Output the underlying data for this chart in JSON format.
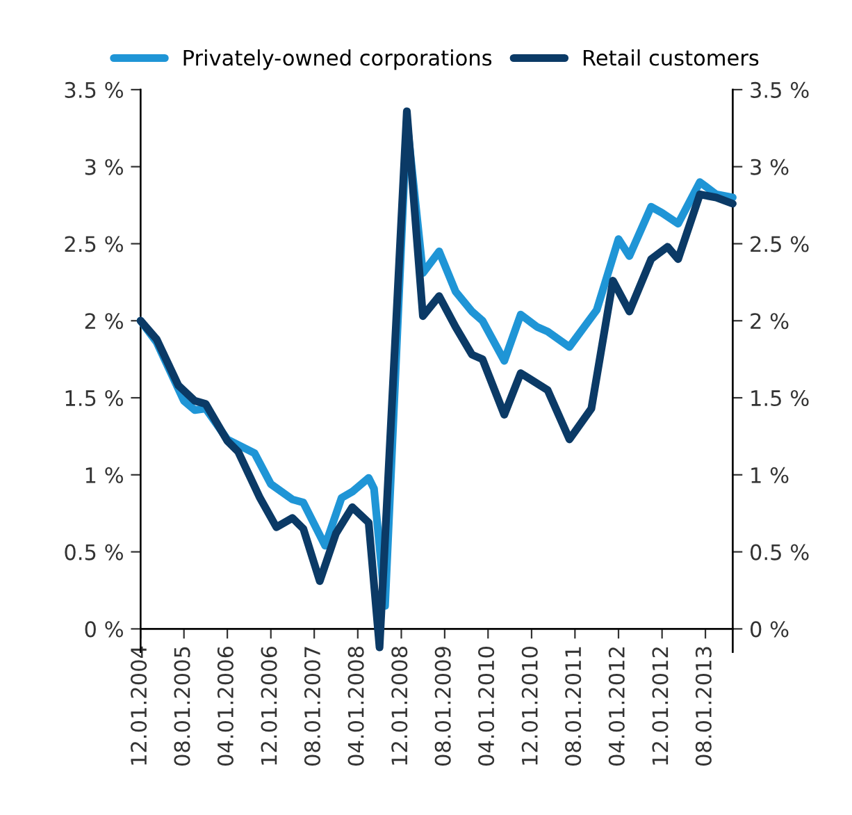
{
  "chart_data": {
    "type": "line",
    "series": [
      {
        "name": "Privately-owned corporations",
        "color": "#1f95d6",
        "x": [
          "2004-12",
          "2005-03",
          "2005-08",
          "2005-10",
          "2005-12",
          "2006-04",
          "2006-09",
          "2006-12",
          "2007-04",
          "2007-06",
          "2007-10",
          "2008-01",
          "2008-03",
          "2008-06",
          "2008-07",
          "2008-09",
          "2009-01",
          "2009-04",
          "2009-07",
          "2009-10",
          "2010-01",
          "2010-03",
          "2010-07",
          "2010-10",
          "2011-01",
          "2011-03",
          "2011-07",
          "2011-12",
          "2012-04",
          "2012-06",
          "2012-10",
          "2012-12",
          "2013-03",
          "2013-07",
          "2013-10",
          "2014-01"
        ],
        "values": [
          2.0,
          1.86,
          1.48,
          1.42,
          1.43,
          1.23,
          1.14,
          0.94,
          0.84,
          0.82,
          0.54,
          0.85,
          0.89,
          0.98,
          0.91,
          0.15,
          3.3,
          2.31,
          2.45,
          2.19,
          2.06,
          2.0,
          1.74,
          2.04,
          1.96,
          1.93,
          1.83,
          2.07,
          2.53,
          2.42,
          2.74,
          2.7,
          2.63,
          2.9,
          2.82,
          2.8
        ]
      },
      {
        "name": "Retail customers",
        "color": "#0b3a66",
        "x": [
          "2004-12",
          "2005-03",
          "2005-07",
          "2005-10",
          "2005-12",
          "2006-04",
          "2006-06",
          "2006-10",
          "2007-01",
          "2007-04",
          "2007-06",
          "2007-09",
          "2007-12",
          "2008-03",
          "2008-06",
          "2008-08",
          "2009-01",
          "2009-04",
          "2009-07",
          "2009-10",
          "2010-01",
          "2010-03",
          "2010-07",
          "2010-10",
          "2011-03",
          "2011-07",
          "2011-11",
          "2012-03",
          "2012-06",
          "2012-10",
          "2013-01",
          "2013-03",
          "2013-07",
          "2013-10",
          "2014-01"
        ],
        "values": [
          2.0,
          1.88,
          1.58,
          1.48,
          1.46,
          1.22,
          1.15,
          0.85,
          0.66,
          0.72,
          0.65,
          0.31,
          0.62,
          0.79,
          0.69,
          -0.12,
          3.36,
          2.03,
          2.16,
          1.96,
          1.78,
          1.75,
          1.39,
          1.66,
          1.55,
          1.23,
          1.43,
          2.26,
          2.06,
          2.4,
          2.48,
          2.4,
          2.82,
          2.8,
          2.76
        ]
      }
    ],
    "xlim": [
      "2004-12",
      "2014-01"
    ],
    "xticks": [
      {
        "value": "2004-12",
        "label": "12.01.2004"
      },
      {
        "value": "2005-08",
        "label": "08.01.2005"
      },
      {
        "value": "2006-04",
        "label": "04.01.2006"
      },
      {
        "value": "2006-12",
        "label": "12.01.2006"
      },
      {
        "value": "2007-08",
        "label": "08.01.2007"
      },
      {
        "value": "2008-04",
        "label": "04.01.2008"
      },
      {
        "value": "2008-12",
        "label": "12.01.2008"
      },
      {
        "value": "2009-08",
        "label": "08.01.2009"
      },
      {
        "value": "2010-04",
        "label": "04.01.2010"
      },
      {
        "value": "2010-12",
        "label": "12.01.2010"
      },
      {
        "value": "2011-08",
        "label": "08.01.2011"
      },
      {
        "value": "2012-04",
        "label": "04.01.2012"
      },
      {
        "value": "2012-12",
        "label": "12.01.2012"
      },
      {
        "value": "2013-08",
        "label": "08.01.2013"
      }
    ],
    "ylim": [
      -0.15,
      3.5
    ],
    "yticks": [
      {
        "value": 0,
        "label": "0 %"
      },
      {
        "value": 0.5,
        "label": "0.5 %"
      },
      {
        "value": 1,
        "label": "1 %"
      },
      {
        "value": 1.5,
        "label": "1.5 %"
      },
      {
        "value": 2,
        "label": "2 %"
      },
      {
        "value": 2.5,
        "label": "2.5 %"
      },
      {
        "value": 3,
        "label": "3 %"
      },
      {
        "value": 3.5,
        "label": "3.5 %"
      }
    ],
    "y2lim": [
      -0.15,
      3.5
    ],
    "y2ticks": [
      {
        "value": 0,
        "label": "0 %"
      },
      {
        "value": 0.5,
        "label": "0.5 %"
      },
      {
        "value": 1,
        "label": "1 %"
      },
      {
        "value": 1.5,
        "label": "1.5 %"
      },
      {
        "value": 2,
        "label": "2 %"
      },
      {
        "value": 2.5,
        "label": "2.5 %"
      },
      {
        "value": 3,
        "label": "3 %"
      },
      {
        "value": 3.5,
        "label": "3.5 %"
      }
    ],
    "grid": false,
    "legend": "top",
    "line_style": "solid",
    "marker": "none"
  }
}
